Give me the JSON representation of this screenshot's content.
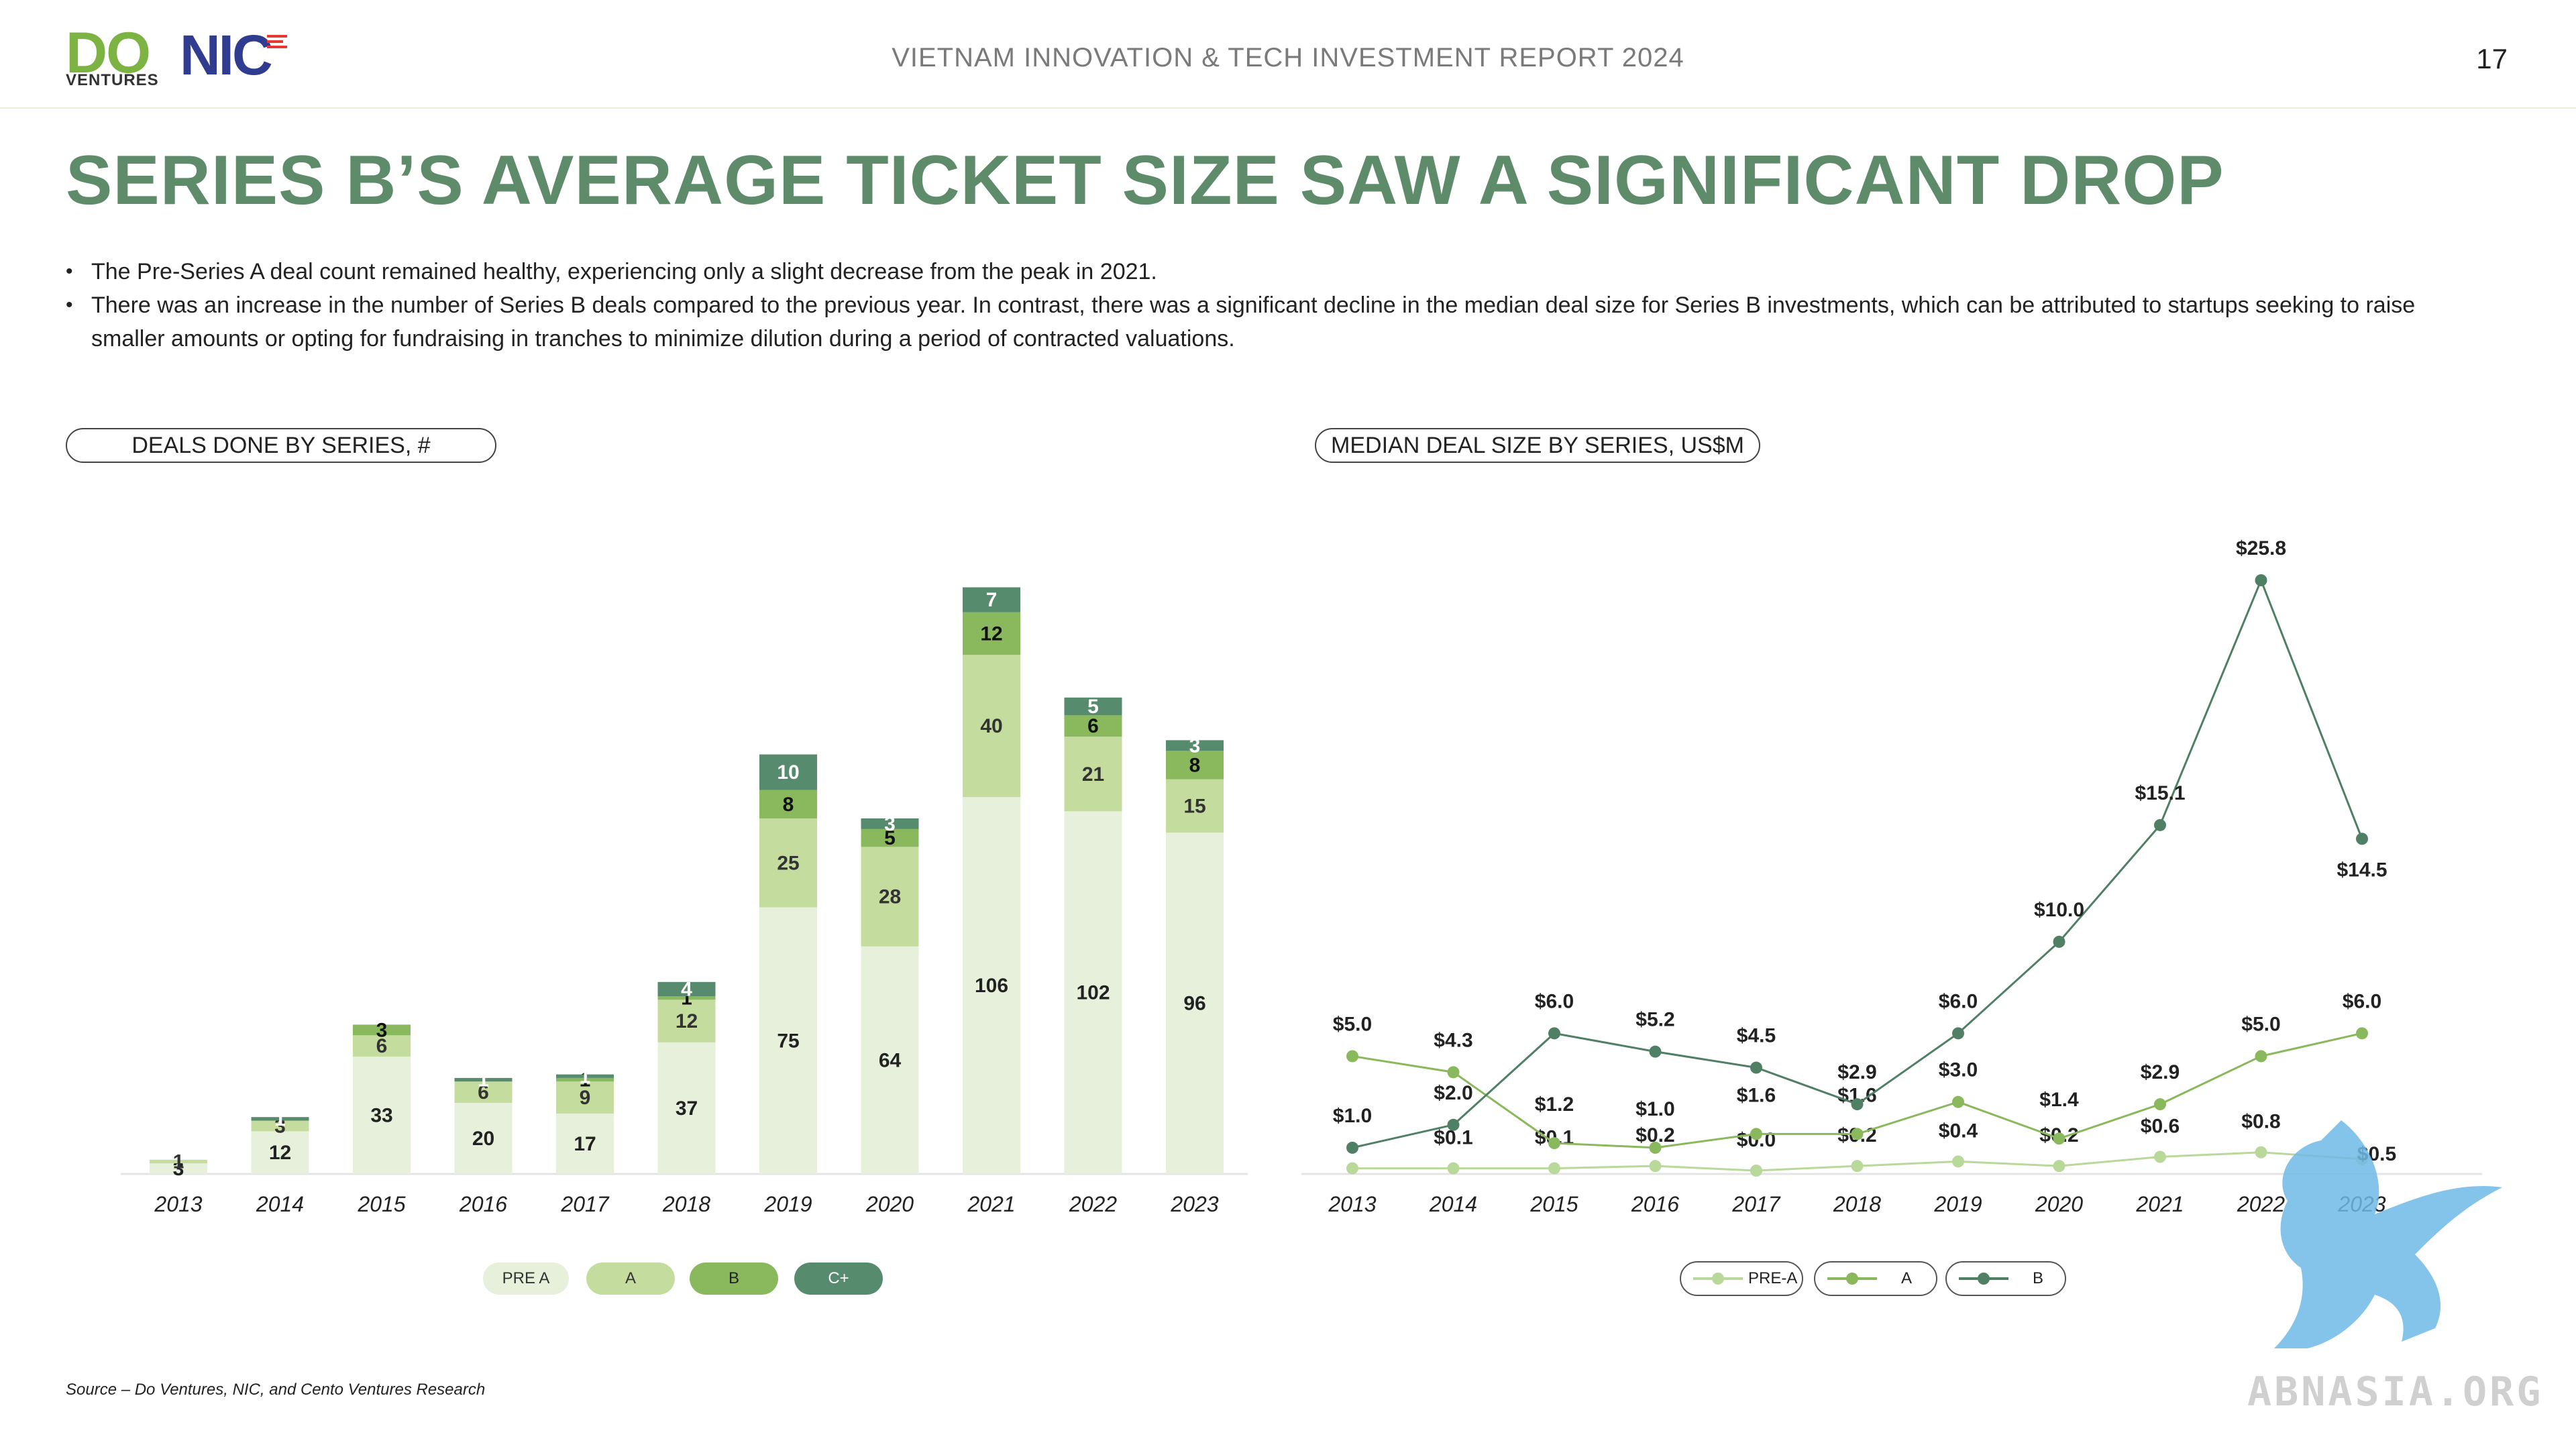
{
  "header": {
    "logo_do": "DO",
    "logo_ventures": "VENTURES",
    "logo_nic": "NIC",
    "report_title": "VIETNAM INNOVATION & TECH INVESTMENT REPORT 2024",
    "page_number": "17"
  },
  "title": "SERIES B’S AVERAGE TICKET SIZE SAW A SIGNIFICANT DROP",
  "bullets": [
    "The Pre-Series A deal count remained healthy, experiencing only a slight decrease from the peak in 2021.",
    "There was an increase in the number of Series B deals compared to the previous year. In contrast, there was a significant decline in the median deal size for Series B investments, which can be attributed to startups seeking to raise smaller amounts or opting for fundraising in tranches to minimize dilution during a period of contracted valuations."
  ],
  "left_chart_title": "DEALS DONE BY SERIES, #",
  "right_chart_title": "MEDIAN DEAL SIZE BY SERIES, US$M",
  "source": "Source – Do Ventures, NIC, and Cento Ventures Research",
  "watermark": "ABNASIA.ORG",
  "colors": {
    "pre_a": "#e6f0da",
    "a": "#c4dc9e",
    "b": "#8ab85c",
    "c_plus": "#578b6d",
    "title_green": "#5e8c6a",
    "line_pre_a": "#b9d99a",
    "line_a": "#8ab85c",
    "line_b": "#4f8066"
  },
  "chart_data": [
    {
      "type": "bar",
      "stacked": true,
      "title": "DEALS DONE BY SERIES, #",
      "categories": [
        "2013",
        "2014",
        "2015",
        "2016",
        "2017",
        "2018",
        "2019",
        "2020",
        "2021",
        "2022",
        "2023"
      ],
      "series": [
        {
          "name": "PRE A",
          "values": [
            3,
            12,
            33,
            20,
            17,
            37,
            75,
            64,
            106,
            102,
            96
          ]
        },
        {
          "name": "A",
          "values": [
            1,
            3,
            6,
            6,
            9,
            12,
            25,
            28,
            40,
            21,
            15
          ]
        },
        {
          "name": "B",
          "values": [
            0,
            0,
            3,
            0,
            1,
            1,
            8,
            5,
            12,
            6,
            8
          ]
        },
        {
          "name": "C+",
          "values": [
            0,
            1,
            0,
            1,
            1,
            4,
            10,
            3,
            7,
            5,
            3
          ]
        }
      ],
      "ylim": [
        0,
        170
      ],
      "legend": "bottom",
      "grid": false
    },
    {
      "type": "line",
      "title": "MEDIAN DEAL SIZE BY SERIES, US$M",
      "categories": [
        "2013",
        "2014",
        "2015",
        "2016",
        "2017",
        "2018",
        "2019",
        "2020",
        "2021",
        "2022",
        "2023"
      ],
      "series": [
        {
          "name": "PRE-A",
          "values": [
            0.1,
            0.1,
            0.1,
            0.2,
            0.0,
            0.2,
            0.4,
            0.2,
            0.6,
            0.8,
            0.5
          ],
          "labels": [
            "",
            "$0.1",
            "$0.1",
            "$0.2",
            "$0.0",
            "$0.2",
            "$0.4",
            "$0.2",
            "$0.6",
            "$0.8",
            "$0.5"
          ]
        },
        {
          "name": "A",
          "values": [
            5.0,
            4.3,
            1.2,
            1.0,
            1.6,
            1.6,
            3.0,
            1.4,
            2.9,
            5.0,
            6.0
          ],
          "labels": [
            "$5.0",
            "$4.3",
            "$1.2",
            "$1.0",
            "$1.6",
            "$1.6",
            "$3.0",
            "$1.4",
            "$2.9",
            "$5.0",
            "$6.0"
          ]
        },
        {
          "name": "B",
          "values": [
            1.0,
            2.0,
            6.0,
            5.2,
            4.5,
            2.9,
            6.0,
            10.0,
            15.1,
            25.8,
            14.5
          ],
          "labels": [
            "$1.0",
            "$2.0",
            "$6.0",
            "$5.2",
            "$4.5",
            "$2.9",
            "$6.0",
            "$10.0",
            "$15.1",
            "$25.8",
            "$14.5"
          ]
        }
      ],
      "ylim": [
        0,
        28
      ],
      "legend": "bottom",
      "grid": false
    }
  ]
}
